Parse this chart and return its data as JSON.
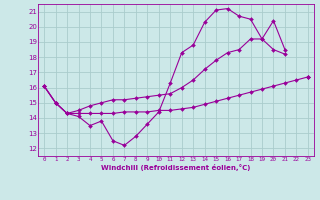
{
  "xlabel": "Windchill (Refroidissement éolien,°C)",
  "xlim": [
    -0.5,
    23.5
  ],
  "ylim": [
    11.5,
    21.5
  ],
  "yticks": [
    12,
    13,
    14,
    15,
    16,
    17,
    18,
    19,
    20,
    21
  ],
  "xticks": [
    0,
    1,
    2,
    3,
    4,
    5,
    6,
    7,
    8,
    9,
    10,
    11,
    12,
    13,
    14,
    15,
    16,
    17,
    18,
    19,
    20,
    21,
    22,
    23
  ],
  "line_color": "#990099",
  "bg_color": "#cce8e8",
  "grid_color": "#aacccc",
  "line1_x": [
    0,
    1,
    2,
    3,
    4,
    5,
    6,
    7,
    8,
    9,
    10,
    11,
    12,
    13,
    14,
    15,
    16,
    17,
    18,
    19,
    20,
    21,
    22,
    23
  ],
  "line1_y": [
    16.1,
    15.0,
    14.3,
    14.1,
    13.5,
    13.8,
    12.5,
    12.2,
    12.8,
    13.6,
    14.4,
    16.3,
    18.3,
    18.8,
    20.3,
    21.1,
    21.2,
    20.7,
    20.5,
    19.2,
    20.4,
    18.5,
    null,
    16.7
  ],
  "line2_x": [
    0,
    1,
    2,
    3,
    4,
    5,
    6,
    7,
    8,
    9,
    10,
    11,
    12,
    13,
    14,
    15,
    16,
    17,
    18,
    19,
    20,
    21,
    22,
    23
  ],
  "line2_y": [
    16.1,
    15.0,
    14.3,
    14.5,
    14.8,
    15.0,
    15.2,
    15.2,
    15.3,
    15.4,
    15.5,
    15.6,
    16.0,
    16.5,
    17.2,
    17.8,
    18.3,
    18.5,
    19.2,
    19.2,
    18.5,
    18.2,
    null,
    16.7
  ],
  "line3_x": [
    0,
    1,
    2,
    3,
    4,
    5,
    6,
    7,
    8,
    9,
    10,
    11,
    12,
    13,
    14,
    15,
    16,
    17,
    18,
    19,
    20,
    21,
    22,
    23
  ],
  "line3_y": [
    16.1,
    15.0,
    14.3,
    14.3,
    14.3,
    14.3,
    14.3,
    14.4,
    14.4,
    14.4,
    14.5,
    14.5,
    14.6,
    14.7,
    14.9,
    15.1,
    15.3,
    15.5,
    15.7,
    15.9,
    16.1,
    16.3,
    16.5,
    16.7
  ]
}
